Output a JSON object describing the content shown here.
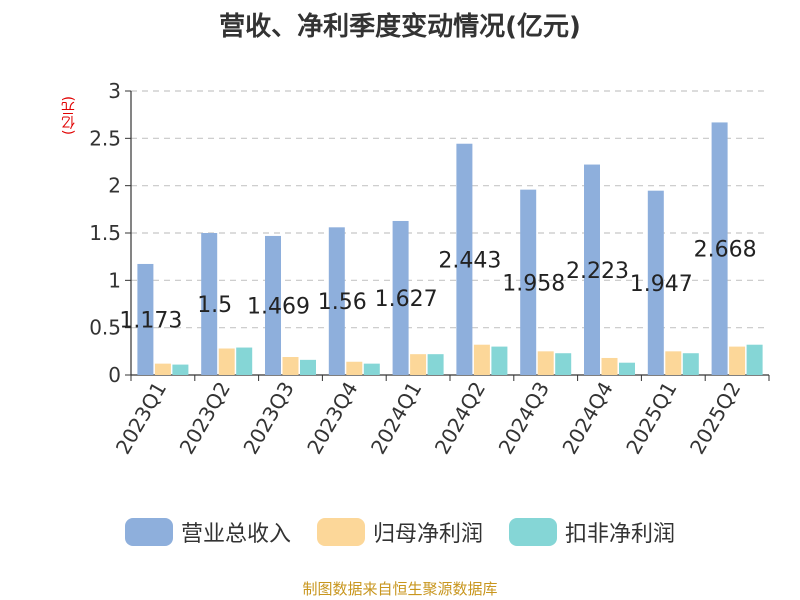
{
  "chart_data": {
    "type": "bar",
    "title": "营收、净利季度变动情况(亿元)",
    "ylabel": "(亿元)",
    "ylim": [
      0,
      3
    ],
    "yticks": [
      "0",
      "0.5",
      "1",
      "1.5",
      "2",
      "2.5",
      "3"
    ],
    "grid": true,
    "legend_position": "bottom",
    "categories": [
      "2023Q1",
      "2023Q2",
      "2023Q3",
      "2023Q4",
      "2024Q1",
      "2024Q2",
      "2024Q3",
      "2024Q4",
      "2025Q1",
      "2025Q2"
    ],
    "series": [
      {
        "name": "营业总收入",
        "color": "#8eafdc",
        "values": [
          1.173,
          1.5,
          1.469,
          1.56,
          1.627,
          2.443,
          1.958,
          2.223,
          1.947,
          2.668
        ],
        "labels": [
          "1.173",
          "1.5",
          "1.469",
          "1.56",
          "1.627",
          "2.443",
          "1.958",
          "2.223",
          "1.947",
          "2.668"
        ]
      },
      {
        "name": "归母净利润",
        "color": "#fcd799",
        "values": [
          0.12,
          0.28,
          0.19,
          0.14,
          0.22,
          0.32,
          0.25,
          0.18,
          0.25,
          0.3
        ]
      },
      {
        "name": "扣非净利润",
        "color": "#85d6d6",
        "values": [
          0.11,
          0.29,
          0.16,
          0.12,
          0.22,
          0.3,
          0.23,
          0.13,
          0.23,
          0.32
        ]
      }
    ]
  },
  "source": "制图数据来自恒生聚源数据库"
}
